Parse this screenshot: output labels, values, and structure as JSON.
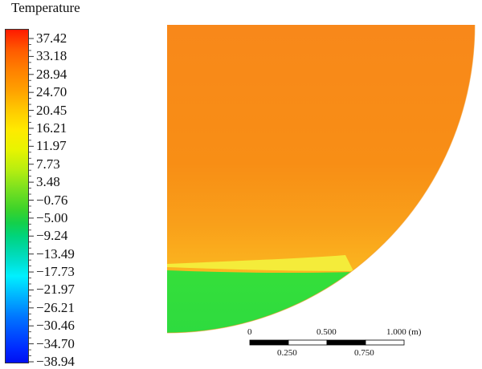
{
  "legend": {
    "title": "Temperature",
    "labels": [
      "37.42",
      "33.18",
      "28.94",
      "24.70",
      "20.45",
      "16.21",
      "11.97",
      "7.73",
      "3.48",
      "−0.76",
      "−5.00",
      "−9.24",
      "−13.49",
      "−17.73",
      "−21.97",
      "−26.21",
      "−30.46",
      "−34.70",
      "−38.94"
    ]
  },
  "scale_bar": {
    "top_labels": [
      "0",
      "0.500",
      "1.000 (m)"
    ],
    "bottom_labels": [
      "0.250",
      "0.750"
    ]
  },
  "colors": {
    "region_upper": "#f88e13",
    "region_middle": "#fbb51c",
    "interface_band": "#eef23a",
    "region_lower": "#2fdd3c"
  }
}
